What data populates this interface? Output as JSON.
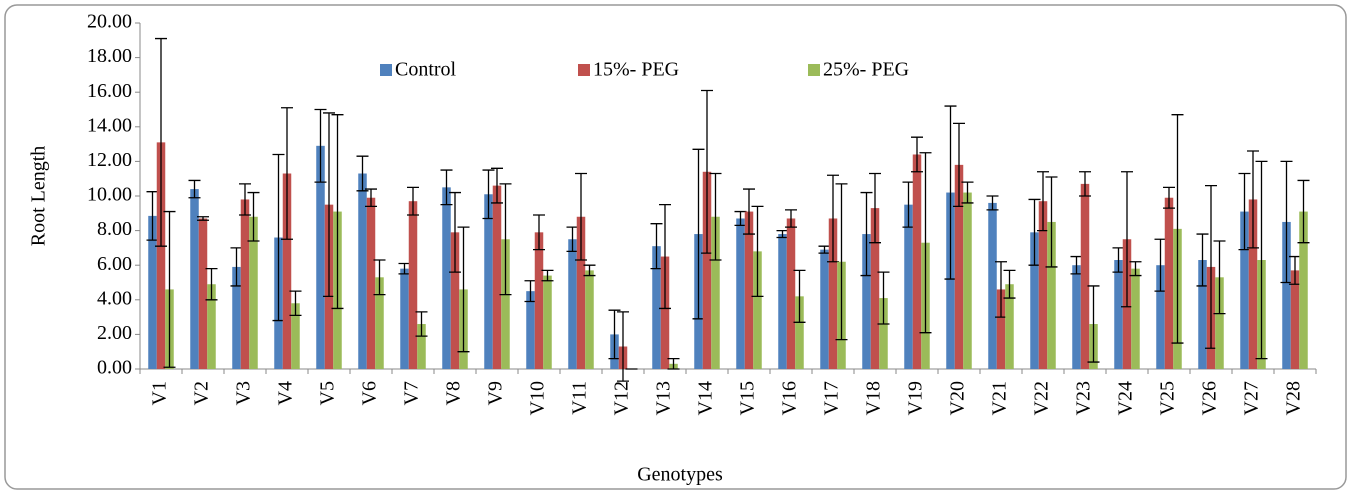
{
  "chart_data": {
    "type": "bar",
    "y_label": "Root Length",
    "x_label": "Genotypes",
    "categories": [
      "V1",
      "V2",
      "V3",
      "V4",
      "V5",
      "V6",
      "V7",
      "V8",
      "V9",
      "V10",
      "V11",
      "V12",
      "V13",
      "V14",
      "V15",
      "V16",
      "V17",
      "V18",
      "V19",
      "V20",
      "V21",
      "V22",
      "V23",
      "V24",
      "V25",
      "V26",
      "V27",
      "V28"
    ],
    "series": [
      {
        "name": "Control",
        "color": "#4f81bd",
        "values": [
          8.85,
          10.4,
          5.9,
          7.6,
          12.9,
          11.3,
          5.8,
          10.5,
          10.1,
          4.5,
          7.5,
          2.0,
          7.1,
          7.8,
          8.7,
          7.8,
          6.9,
          7.8,
          9.5,
          10.2,
          9.6,
          7.9,
          6.0,
          6.3,
          6.0,
          6.3,
          9.1,
          8.5
        ],
        "errors": [
          1.4,
          0.5,
          1.1,
          4.8,
          2.1,
          1.0,
          0.3,
          1.0,
          1.4,
          0.6,
          0.7,
          1.4,
          1.3,
          4.9,
          0.4,
          0.2,
          0.2,
          2.4,
          1.3,
          5.0,
          0.4,
          1.9,
          0.5,
          0.7,
          1.5,
          1.5,
          2.2,
          3.5
        ]
      },
      {
        "name": "15%- PEG",
        "color": "#c0504d",
        "values": [
          13.1,
          8.7,
          9.8,
          11.3,
          9.5,
          9.9,
          9.7,
          7.9,
          10.6,
          7.9,
          8.8,
          1.3,
          6.5,
          11.4,
          9.1,
          8.7,
          8.7,
          9.3,
          12.4,
          11.8,
          4.6,
          9.7,
          10.7,
          7.5,
          9.9,
          5.9,
          9.8,
          5.7
        ],
        "errors": [
          6.0,
          0.1,
          0.9,
          3.8,
          5.3,
          0.5,
          0.8,
          2.3,
          1.0,
          1.0,
          2.5,
          2.0,
          3.0,
          4.7,
          1.3,
          0.5,
          2.5,
          2.0,
          1.0,
          2.4,
          1.6,
          1.7,
          0.7,
          3.9,
          0.6,
          4.7,
          2.8,
          0.8
        ]
      },
      {
        "name": "25%- PEG",
        "color": "#9bbb59",
        "values": [
          4.6,
          4.9,
          8.8,
          3.8,
          9.1,
          5.3,
          2.6,
          4.6,
          7.5,
          5.4,
          5.7,
          0,
          0.3,
          8.8,
          6.8,
          4.2,
          6.2,
          4.1,
          7.3,
          10.2,
          4.9,
          8.5,
          2.6,
          5.8,
          8.1,
          5.3,
          6.3,
          9.1
        ],
        "errors": [
          4.5,
          0.9,
          1.4,
          0.7,
          5.6,
          1.0,
          0.7,
          3.6,
          3.2,
          0.3,
          0.3,
          0,
          0.3,
          2.5,
          2.6,
          1.5,
          4.5,
          1.5,
          5.2,
          0.6,
          0.8,
          2.6,
          2.2,
          0.4,
          6.6,
          2.1,
          5.7,
          1.8
        ]
      }
    ],
    "ylim": [
      0,
      20
    ],
    "yticks": [
      {
        "value": 0,
        "label": "0.00"
      },
      {
        "value": 2,
        "label": "2.00"
      },
      {
        "value": 4,
        "label": "4.00"
      },
      {
        "value": 6,
        "label": "6.00"
      },
      {
        "value": 8,
        "label": "8.00"
      },
      {
        "value": 10,
        "label": "10.00"
      },
      {
        "value": 12,
        "label": "12.00"
      },
      {
        "value": 14,
        "label": "14.00"
      },
      {
        "value": 16,
        "label": "16.00"
      },
      {
        "value": 18,
        "label": "18.00"
      },
      {
        "value": 20,
        "label": "20.00"
      }
    ],
    "grid": false,
    "legend": "top"
  }
}
